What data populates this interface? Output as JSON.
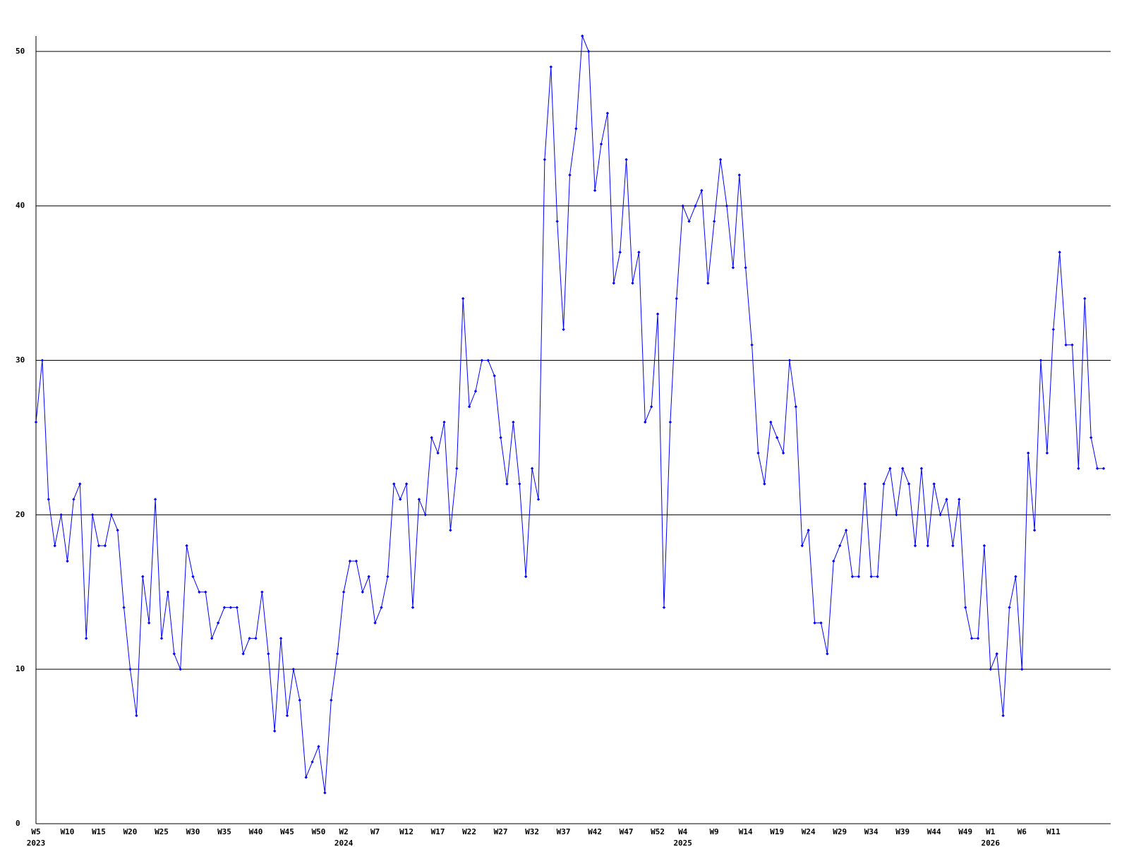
{
  "chart_data": {
    "type": "line",
    "categories": [
      "W5",
      null,
      null,
      null,
      null,
      "W10",
      null,
      null,
      null,
      null,
      "W15",
      null,
      null,
      null,
      null,
      "W20",
      null,
      null,
      null,
      null,
      "W25",
      null,
      null,
      null,
      null,
      "W30",
      null,
      null,
      null,
      null,
      "W35",
      null,
      null,
      null,
      null,
      "W40",
      null,
      null,
      null,
      null,
      "W45",
      null,
      null,
      null,
      null,
      "W50",
      null,
      null,
      null,
      "W2",
      null,
      null,
      null,
      null,
      "W7",
      null,
      null,
      null,
      null,
      "W12",
      null,
      null,
      null,
      null,
      "W17",
      null,
      null,
      null,
      null,
      "W22",
      null,
      null,
      null,
      null,
      "W27",
      null,
      null,
      null,
      null,
      "W32",
      null,
      null,
      null,
      null,
      "W37",
      null,
      null,
      null,
      null,
      "W42",
      null,
      null,
      null,
      null,
      "W47",
      null,
      null,
      null,
      null,
      "W52",
      null,
      null,
      null,
      "W4",
      null,
      null,
      null,
      null,
      "W9",
      null,
      null,
      null,
      null,
      "W14",
      null,
      null,
      null,
      null,
      "W19",
      null,
      null,
      null,
      null,
      "W24",
      null,
      null,
      null,
      null,
      "W29",
      null,
      null,
      null,
      null,
      "W34",
      null,
      null,
      null,
      null,
      "W39",
      null,
      null,
      null,
      null,
      "W44",
      null,
      null,
      null,
      null,
      "W49",
      null,
      null,
      null,
      "W1",
      null,
      null,
      null,
      null,
      "W6",
      null,
      null,
      null,
      null,
      "W11",
      null,
      null,
      null,
      null,
      null,
      null,
      null,
      null
    ],
    "years": [
      "2023",
      "2024",
      "2025",
      "2026"
    ],
    "series": [
      {
        "color": "#0000ff",
        "values": [
          26,
          30,
          21,
          18,
          20,
          17,
          21,
          22,
          12,
          20,
          18,
          18,
          20,
          19,
          14,
          10,
          7,
          16,
          13,
          21,
          12,
          15,
          11,
          10,
          18,
          16,
          15,
          15,
          12,
          13,
          14,
          14,
          14,
          11,
          12,
          12,
          15,
          11,
          6,
          12,
          7,
          10,
          8,
          3,
          4,
          5,
          2,
          8,
          11,
          15,
          17,
          17,
          15,
          16,
          13,
          14,
          16,
          22,
          21,
          22,
          14,
          21,
          20,
          25,
          24,
          26,
          19,
          23,
          34,
          27,
          28,
          30,
          30,
          29,
          25,
          22,
          26,
          22,
          16,
          23,
          21,
          43,
          49,
          39,
          32,
          42,
          45,
          51,
          50,
          41,
          44,
          46,
          35,
          37,
          43,
          35,
          37,
          26,
          27,
          33,
          14,
          26,
          34,
          40,
          39,
          40,
          41,
          35,
          39,
          43,
          40,
          36,
          42,
          36,
          31,
          24,
          22,
          26,
          25,
          24,
          30,
          27,
          18,
          19,
          13,
          13,
          11,
          17,
          18,
          19,
          16,
          16,
          22,
          16,
          16,
          22,
          23,
          20,
          23,
          22,
          18,
          23,
          18,
          22,
          20,
          21,
          18,
          21,
          14,
          12,
          12,
          18,
          10,
          11,
          7,
          14,
          16,
          10,
          24,
          19,
          30,
          24,
          32,
          37,
          31,
          31,
          23,
          34,
          25,
          23,
          23
        ]
      }
    ],
    "ylim": [
      0,
      51
    ],
    "yticks": [
      0,
      10,
      20,
      30,
      40,
      50
    ],
    "grid": true
  }
}
